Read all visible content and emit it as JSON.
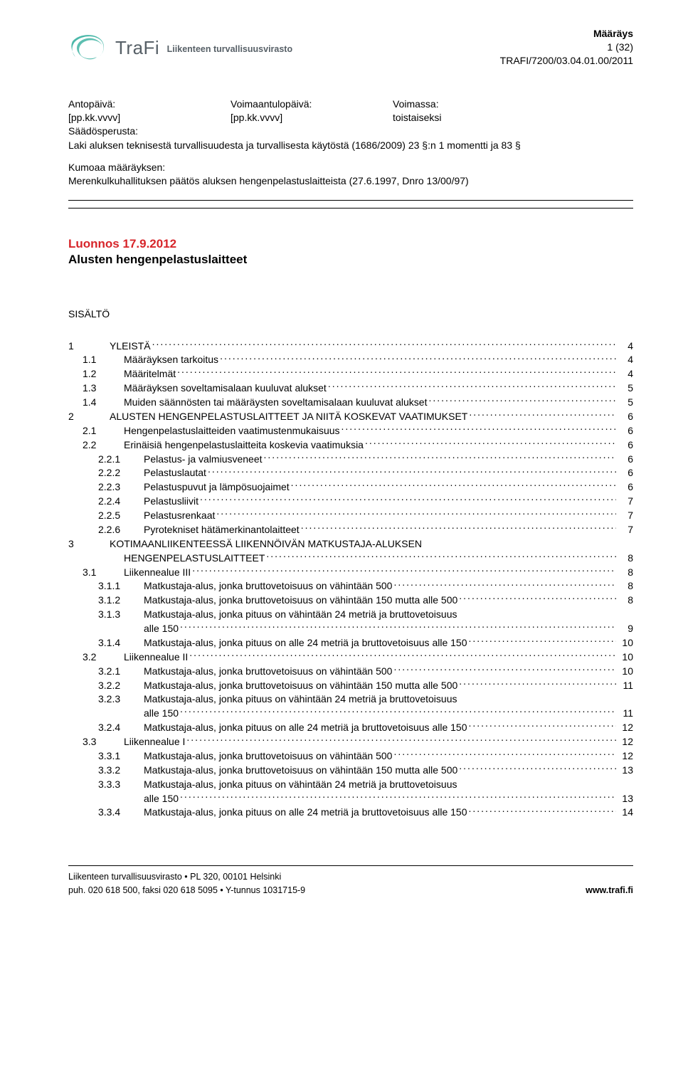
{
  "colors": {
    "accent_red": "#d7252a",
    "logo_teal": "#4bb8a9",
    "logo_gray": "#576067",
    "text": "#000000",
    "background": "#ffffff"
  },
  "header": {
    "logo_main": "TraFi",
    "logo_sub": "Liikenteen turvallisuusvirasto",
    "doc_type": "Määräys",
    "page_info": "1 (32)",
    "doc_ref": "TRAFI/7200/03.04.01.00/2011"
  },
  "meta": {
    "col1_label": "Antopäivä:",
    "col1_value": "[pp.kk.vvvv]",
    "col2_label": "Voimaantulopäivä:",
    "col2_value": "[pp.kk.vvvv]",
    "col3_label": "Voimassa:",
    "col3_value": "toistaiseksi",
    "basis_label": "Säädösperusta:",
    "basis_text": "Laki aluksen teknisestä turvallisuudesta ja turvallisesta käytöstä (1686/2009) 23 §:n 1 momentti ja 83 §",
    "repeal_label": "Kumoaa määräyksen:",
    "repeal_text": "Merenkulkuhallituksen päätös aluksen hengenpelastuslaitteista (27.6.1997, Dnro 13/00/97)"
  },
  "draft": {
    "date": "Luonnos 17.9.2012",
    "title": "Alusten hengenpelastuslaitteet"
  },
  "sisalto_label": "SISÄLTÖ",
  "toc": [
    {
      "lvl": 1,
      "num": "1",
      "title": "YLEISTÄ",
      "page": "4"
    },
    {
      "lvl": 2,
      "num": "1.1",
      "title": "Määräyksen tarkoitus",
      "page": "4"
    },
    {
      "lvl": 2,
      "num": "1.2",
      "title": "Määritelmät",
      "page": "4"
    },
    {
      "lvl": 2,
      "num": "1.3",
      "title": "Määräyksen soveltamisalaan kuuluvat alukset",
      "page": "5"
    },
    {
      "lvl": 2,
      "num": "1.4",
      "title": "Muiden säännösten tai määräysten soveltamisalaan kuuluvat alukset",
      "page": "5"
    },
    {
      "lvl": 1,
      "num": "2",
      "title": "ALUSTEN HENGENPELASTUSLAITTEET JA NIITÄ KOSKEVAT VAATIMUKSET",
      "page": "6"
    },
    {
      "lvl": 2,
      "num": "2.1",
      "title": "Hengenpelastuslaitteiden vaatimustenmukaisuus",
      "page": "6"
    },
    {
      "lvl": 2,
      "num": "2.2",
      "title": "Erinäisiä hengenpelastuslaitteita koskevia vaatimuksia",
      "page": "6"
    },
    {
      "lvl": 3,
      "num": "2.2.1",
      "title": "Pelastus- ja valmiusveneet",
      "page": "6"
    },
    {
      "lvl": 3,
      "num": "2.2.2",
      "title": "Pelastuslautat",
      "page": "6"
    },
    {
      "lvl": 3,
      "num": "2.2.3",
      "title": "Pelastuspuvut ja lämpösuojaimet",
      "page": "6"
    },
    {
      "lvl": 3,
      "num": "2.2.4",
      "title": "Pelastusliivit",
      "page": "7"
    },
    {
      "lvl": 3,
      "num": "2.2.5",
      "title": "Pelastusrenkaat",
      "page": "7"
    },
    {
      "lvl": 3,
      "num": "2.2.6",
      "title": "Pyrotekniset hätämerkinantolaitteet",
      "page": "7"
    },
    {
      "lvl": 1,
      "num": "3",
      "title": "KOTIMAANLIIKENTEESSÄ LIIKENNÖIVÄN MATKUSTAJA-ALUKSEN",
      "cont": "HENGENPELASTUSLAITTEET",
      "page": "8"
    },
    {
      "lvl": 2,
      "num": "3.1",
      "title": "Liikennealue III",
      "page": "8"
    },
    {
      "lvl": 3,
      "num": "3.1.1",
      "title": "Matkustaja-alus, jonka bruttovetoisuus on vähintään 500",
      "page": "8"
    },
    {
      "lvl": 3,
      "num": "3.1.2",
      "title": "Matkustaja-alus, jonka bruttovetoisuus on vähintään 150 mutta alle 500",
      "page": "8"
    },
    {
      "lvl": 3,
      "num": "3.1.3",
      "title": "Matkustaja-alus, jonka pituus on vähintään 24 metriä ja bruttovetoisuus",
      "cont": "alle 150",
      "page": "9"
    },
    {
      "lvl": 3,
      "num": "3.1.4",
      "title": "Matkustaja-alus, jonka pituus on alle 24 metriä ja bruttovetoisuus alle 150",
      "page": "10"
    },
    {
      "lvl": 2,
      "num": "3.2",
      "title": "Liikennealue II",
      "page": "10"
    },
    {
      "lvl": 3,
      "num": "3.2.1",
      "title": "Matkustaja-alus, jonka bruttovetoisuus on vähintään 500",
      "page": "10"
    },
    {
      "lvl": 3,
      "num": "3.2.2",
      "title": "Matkustaja-alus, jonka bruttovetoisuus on vähintään 150 mutta alle 500",
      "page": "11"
    },
    {
      "lvl": 3,
      "num": "3.2.3",
      "title": "Matkustaja-alus, jonka pituus on vähintään 24 metriä ja bruttovetoisuus",
      "cont": "alle 150",
      "page": "11"
    },
    {
      "lvl": 3,
      "num": "3.2.4",
      "title": "Matkustaja-alus, jonka pituus on alle 24 metriä ja bruttovetoisuus alle 150",
      "page": "12"
    },
    {
      "lvl": 2,
      "num": "3.3",
      "title": "Liikennealue I",
      "page": "12"
    },
    {
      "lvl": 3,
      "num": "3.3.1",
      "title": "Matkustaja-alus, jonka bruttovetoisuus on vähintään 500",
      "page": "12"
    },
    {
      "lvl": 3,
      "num": "3.3.2",
      "title": "Matkustaja-alus, jonka bruttovetoisuus on vähintään 150 mutta alle 500",
      "page": "13"
    },
    {
      "lvl": 3,
      "num": "3.3.3",
      "title": "Matkustaja-alus, jonka pituus on vähintään 24 metriä ja bruttovetoisuus",
      "cont": "alle 150",
      "page": "13"
    },
    {
      "lvl": 3,
      "num": "3.3.4",
      "title": "Matkustaja-alus, jonka pituus on alle 24 metriä ja bruttovetoisuus alle 150",
      "page": "14"
    }
  ],
  "footer": {
    "line1": "Liikenteen turvallisuusvirasto • PL 320, 00101 Helsinki",
    "line2": "puh. 020 618 500, faksi 020 618 5095 • Y-tunnus 1031715-9",
    "url": "www.trafi.fi"
  }
}
